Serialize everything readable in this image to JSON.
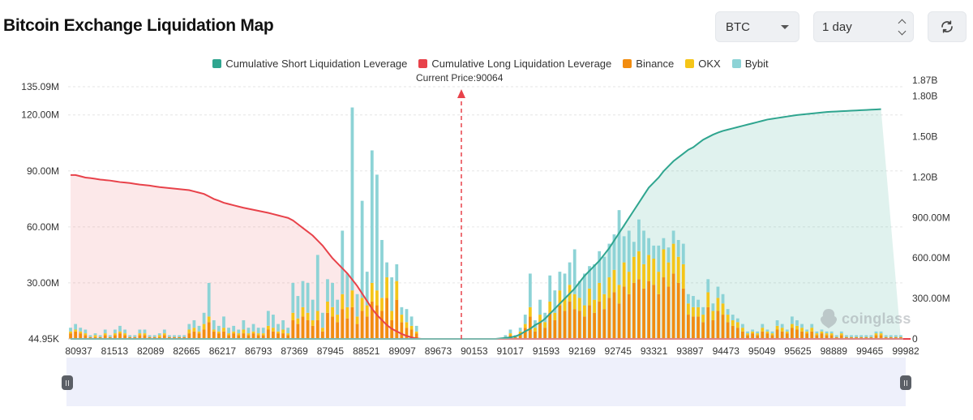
{
  "header": {
    "title": "Bitcoin Exchange Liquidation Map",
    "coin": "BTC",
    "range": "1 day"
  },
  "watermark": "coinglass",
  "chart_data": {
    "type": "bar",
    "title": "Bitcoin Exchange Liquidation Map",
    "current_price_label": "Current Price:90064",
    "current_price": 90064,
    "legend": [
      {
        "name": "Cumulative Short Liquidation Leverage",
        "color": "#2fa58f"
      },
      {
        "name": "Cumulative Long Liquidation Leverage",
        "color": "#e8424a"
      },
      {
        "name": "Binance",
        "color": "#f28c0f"
      },
      {
        "name": "OKX",
        "color": "#f5c518"
      },
      {
        "name": "Bybit",
        "color": "#8dd3d6"
      }
    ],
    "x_tick_labels": [
      "80937",
      "81513",
      "82089",
      "82665",
      "86217",
      "86793",
      "87369",
      "87945",
      "88521",
      "89097",
      "89673",
      "90153",
      "91017",
      "91593",
      "92169",
      "92745",
      "93321",
      "93897",
      "94473",
      "95049",
      "95625",
      "98889",
      "99465",
      "99982"
    ],
    "left_axis": {
      "ticks": [
        "44.95K",
        "30.00M",
        "60.00M",
        "90.00M",
        "120.00M",
        "135.09M"
      ],
      "values": [
        0,
        30,
        60,
        90,
        120,
        135.09
      ],
      "unit": "M"
    },
    "right_axis": {
      "ticks": [
        "0",
        "300.00M",
        "600.00M",
        "900.00M",
        "1.20B",
        "1.50B",
        "1.80B",
        "1.87B"
      ],
      "values": [
        0,
        0.3,
        0.6,
        0.9,
        1.2,
        1.5,
        1.8,
        1.87
      ],
      "unit": "B"
    },
    "series": {
      "binance": [
        3,
        4,
        3,
        2,
        1,
        1,
        1,
        2,
        1,
        2,
        3,
        2,
        1,
        1,
        2,
        2,
        1,
        1,
        1,
        2,
        1,
        1,
        1,
        1,
        3,
        4,
        3,
        5,
        9,
        4,
        3,
        4,
        2,
        3,
        2,
        3,
        2,
        3,
        2,
        2,
        5,
        4,
        3,
        3,
        2,
        10,
        8,
        12,
        10,
        7,
        10,
        4,
        14,
        12,
        9,
        16,
        11,
        17,
        8,
        15,
        12,
        20,
        18,
        15,
        22,
        10,
        21,
        9,
        6,
        5,
        3,
        0,
        0,
        0,
        0,
        0,
        0,
        0,
        0,
        0,
        0,
        0,
        0,
        0,
        0,
        0,
        0,
        0,
        1,
        2,
        1,
        3,
        6,
        12,
        4,
        9,
        6,
        14,
        10,
        18,
        15,
        20,
        16,
        15,
        12,
        18,
        14,
        20,
        16,
        22,
        25,
        19,
        28,
        24,
        30,
        32,
        27,
        31,
        29,
        24,
        33,
        28,
        35,
        30,
        27,
        13,
        12,
        12,
        9,
        17,
        10,
        15,
        13,
        9,
        7,
        6,
        4,
        2,
        3,
        2,
        4,
        3,
        2,
        5,
        4,
        3,
        6,
        5,
        4,
        3,
        4,
        2,
        3,
        2,
        2,
        1,
        2,
        1,
        1,
        1,
        1,
        1,
        1,
        2,
        2,
        1,
        1,
        1,
        1
      ],
      "okx": [
        1,
        1,
        1,
        1,
        0,
        1,
        0,
        1,
        0,
        1,
        1,
        1,
        0,
        0,
        1,
        1,
        0,
        0,
        1,
        1,
        0,
        0,
        0,
        0,
        2,
        2,
        1,
        3,
        3,
        1,
        1,
        2,
        1,
        1,
        1,
        2,
        1,
        1,
        1,
        1,
        2,
        2,
        1,
        2,
        1,
        4,
        3,
        5,
        4,
        3,
        5,
        2,
        6,
        5,
        4,
        8,
        6,
        9,
        4,
        7,
        6,
        10,
        8,
        7,
        11,
        5,
        10,
        4,
        3,
        2,
        1,
        0,
        0,
        0,
        0,
        0,
        0,
        0,
        0,
        0,
        0,
        0,
        0,
        0,
        0,
        0,
        0,
        0,
        0,
        1,
        0,
        1,
        2,
        5,
        2,
        4,
        3,
        6,
        4,
        8,
        7,
        9,
        8,
        7,
        6,
        9,
        7,
        10,
        8,
        11,
        12,
        10,
        13,
        12,
        14,
        15,
        13,
        14,
        14,
        12,
        15,
        13,
        16,
        14,
        13,
        6,
        5,
        5,
        4,
        8,
        5,
        7,
        6,
        4,
        3,
        3,
        2,
        1,
        1,
        1,
        2,
        1,
        1,
        2,
        2,
        1,
        2,
        2,
        2,
        1,
        2,
        1,
        1,
        1,
        1,
        0,
        1,
        0,
        0,
        0,
        0,
        0,
        0,
        1,
        1,
        0,
        0,
        0,
        0
      ],
      "bybit": [
        2,
        3,
        2,
        2,
        1,
        1,
        1,
        2,
        1,
        2,
        3,
        2,
        1,
        1,
        2,
        2,
        1,
        1,
        1,
        2,
        1,
        1,
        1,
        1,
        3,
        4,
        3,
        6,
        18,
        5,
        3,
        6,
        3,
        3,
        2,
        5,
        3,
        4,
        3,
        3,
        8,
        7,
        4,
        5,
        3,
        16,
        12,
        14,
        16,
        11,
        30,
        8,
        12,
        13,
        8,
        34,
        18,
        98,
        12,
        52,
        18,
        71,
        62,
        31,
        8,
        18,
        9,
        4,
        7,
        5,
        3,
        0,
        0,
        0,
        0,
        0,
        0,
        0,
        0,
        0,
        0,
        0,
        0,
        0,
        0,
        0,
        0,
        0,
        1,
        2,
        1,
        2,
        5,
        18,
        4,
        8,
        5,
        14,
        12,
        10,
        13,
        12,
        24,
        9,
        17,
        12,
        19,
        17,
        20,
        18,
        19,
        40,
        14,
        22,
        8,
        17,
        18,
        9,
        7,
        14,
        6,
        8,
        7,
        9,
        11,
        5,
        6,
        4,
        4,
        7,
        4,
        6,
        5,
        3,
        3,
        2,
        2,
        1,
        1,
        1,
        2,
        1,
        1,
        3,
        2,
        1,
        4,
        3,
        2,
        1,
        2,
        1,
        1,
        1,
        1,
        1,
        1,
        1,
        1,
        1,
        1,
        1,
        1,
        1,
        1,
        1,
        1,
        1,
        1
      ],
      "cum_long_pct": [
        0.65,
        0.65,
        0.645,
        0.64,
        0.638,
        0.635,
        0.632,
        0.63,
        0.628,
        0.625,
        0.622,
        0.62,
        0.618,
        0.615,
        0.612,
        0.61,
        0.608,
        0.605,
        0.602,
        0.6,
        0.598,
        0.596,
        0.594,
        0.592,
        0.59,
        0.585,
        0.58,
        0.575,
        0.565,
        0.555,
        0.548,
        0.54,
        0.535,
        0.53,
        0.525,
        0.52,
        0.516,
        0.512,
        0.508,
        0.504,
        0.5,
        0.495,
        0.49,
        0.485,
        0.48,
        0.47,
        0.455,
        0.44,
        0.425,
        0.41,
        0.39,
        0.37,
        0.345,
        0.32,
        0.3,
        0.28,
        0.26,
        0.235,
        0.21,
        0.18,
        0.15,
        0.12,
        0.095,
        0.075,
        0.055,
        0.04,
        0.03,
        0.02,
        0.012,
        0.006,
        0.002,
        0,
        0,
        0,
        0,
        0,
        0,
        0,
        0,
        0,
        0,
        0,
        0,
        0,
        0,
        0,
        0,
        0,
        0,
        0,
        0,
        0,
        0,
        0,
        0,
        0,
        0,
        0,
        0,
        0,
        0,
        0,
        0,
        0,
        0,
        0,
        0,
        0,
        0,
        0,
        0,
        0,
        0,
        0,
        0,
        0,
        0,
        0,
        0,
        0,
        0,
        0,
        0,
        0,
        0,
        0,
        0,
        0,
        0,
        0,
        0,
        0,
        0,
        0,
        0,
        0,
        0,
        0,
        0,
        0,
        0,
        0,
        0,
        0,
        0,
        0,
        0,
        0,
        0,
        0,
        0,
        0,
        0,
        0,
        0,
        0,
        0,
        0,
        0,
        0,
        0,
        0,
        0,
        0,
        0,
        0,
        0,
        0,
        0,
        0,
        0
      ],
      "cum_short_pct": [
        0,
        0,
        0,
        0,
        0,
        0,
        0,
        0,
        0,
        0,
        0,
        0,
        0,
        0,
        0,
        0,
        0,
        0,
        0,
        0,
        0,
        0,
        0,
        0,
        0,
        0,
        0,
        0,
        0,
        0,
        0,
        0,
        0,
        0,
        0,
        0,
        0,
        0,
        0,
        0,
        0,
        0,
        0,
        0,
        0,
        0,
        0,
        0,
        0,
        0,
        0,
        0,
        0,
        0,
        0,
        0,
        0,
        0,
        0,
        0,
        0,
        0,
        0,
        0,
        0,
        0,
        0,
        0,
        0,
        0,
        0,
        0,
        0,
        0,
        0,
        0,
        0,
        0,
        0,
        0,
        0,
        0,
        0,
        0,
        0,
        0,
        0,
        0.002,
        0.004,
        0.006,
        0.01,
        0.018,
        0.03,
        0.04,
        0.055,
        0.065,
        0.08,
        0.1,
        0.12,
        0.14,
        0.16,
        0.18,
        0.2,
        0.225,
        0.25,
        0.27,
        0.29,
        0.31,
        0.335,
        0.36,
        0.39,
        0.42,
        0.45,
        0.48,
        0.51,
        0.54,
        0.57,
        0.6,
        0.62,
        0.64,
        0.665,
        0.685,
        0.705,
        0.72,
        0.735,
        0.75,
        0.76,
        0.775,
        0.79,
        0.8,
        0.81,
        0.818,
        0.825,
        0.83,
        0.835,
        0.84,
        0.845,
        0.85,
        0.855,
        0.86,
        0.865,
        0.87,
        0.873,
        0.876,
        0.879,
        0.882,
        0.885,
        0.888,
        0.89,
        0.892,
        0.894,
        0.896,
        0.898,
        0.9,
        0.901,
        0.902,
        0.903,
        0.904,
        0.905,
        0.906,
        0.907,
        0.908,
        0.909,
        0.91,
        0.911
      ]
    }
  }
}
